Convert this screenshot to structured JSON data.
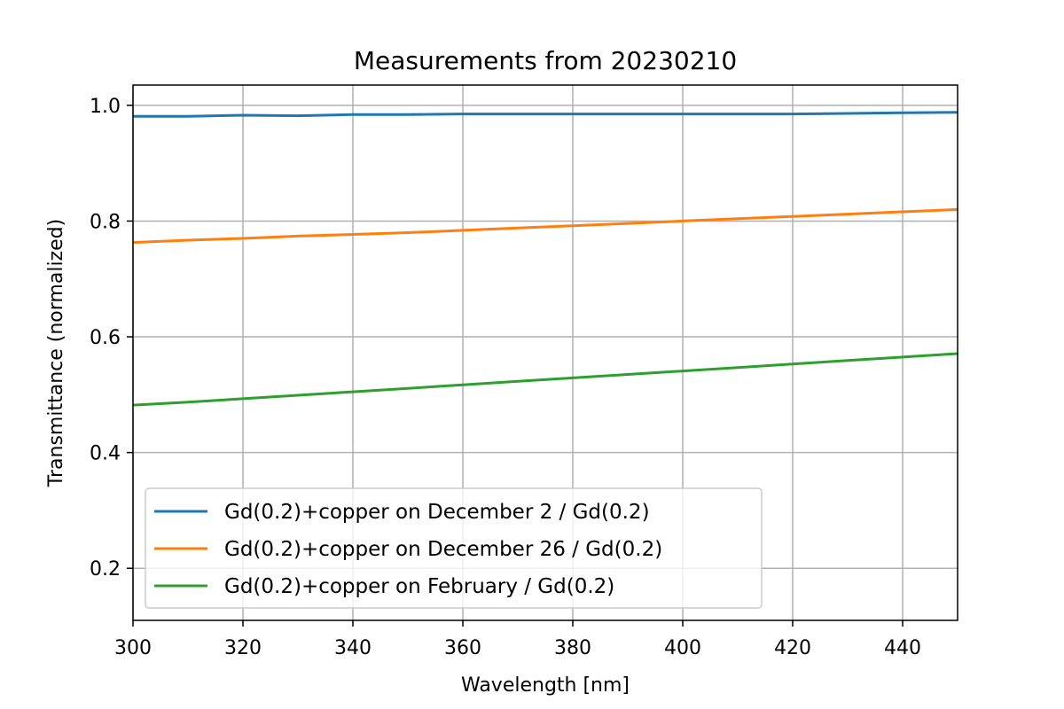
{
  "chart_data": {
    "type": "line",
    "title": "Measurements from 20230210",
    "xlabel": "Wavelength [nm]",
    "ylabel": "Transmittance (normalized)",
    "xlim": [
      300,
      450
    ],
    "ylim": [
      0.11,
      1.035
    ],
    "xticks": [
      300,
      320,
      340,
      360,
      380,
      400,
      420,
      440
    ],
    "yticks": [
      0.2,
      0.4,
      0.6,
      0.8,
      1.0
    ],
    "xtick_labels": [
      "300",
      "320",
      "340",
      "360",
      "380",
      "400",
      "420",
      "440"
    ],
    "ytick_labels": [
      "0.2",
      "0.4",
      "0.6",
      "0.8",
      "1.0"
    ],
    "grid": true,
    "legend_position": "lower-left",
    "series": [
      {
        "name": "Gd(0.2)+copper on December 2 / Gd(0.2)",
        "color": "#1f77b4",
        "x": [
          300,
          310,
          320,
          330,
          340,
          350,
          360,
          370,
          380,
          390,
          400,
          410,
          420,
          430,
          440,
          450
        ],
        "y": [
          0.981,
          0.981,
          0.983,
          0.982,
          0.984,
          0.984,
          0.985,
          0.985,
          0.985,
          0.985,
          0.985,
          0.985,
          0.985,
          0.986,
          0.987,
          0.988
        ]
      },
      {
        "name": "Gd(0.2)+copper on December 26 / Gd(0.2)",
        "color": "#ff7f0e",
        "x": [
          300,
          310,
          320,
          330,
          340,
          350,
          360,
          370,
          380,
          390,
          400,
          410,
          420,
          430,
          440,
          450
        ],
        "y": [
          0.763,
          0.767,
          0.77,
          0.774,
          0.777,
          0.78,
          0.784,
          0.788,
          0.792,
          0.796,
          0.8,
          0.804,
          0.808,
          0.812,
          0.816,
          0.82
        ]
      },
      {
        "name": "Gd(0.2)+copper on February / Gd(0.2)",
        "color": "#2ca02c",
        "x": [
          300,
          310,
          320,
          330,
          340,
          350,
          360,
          370,
          380,
          390,
          400,
          410,
          420,
          430,
          440,
          450
        ],
        "y": [
          0.482,
          0.487,
          0.493,
          0.499,
          0.505,
          0.511,
          0.517,
          0.523,
          0.529,
          0.535,
          0.541,
          0.547,
          0.553,
          0.559,
          0.565,
          0.571
        ]
      }
    ]
  }
}
